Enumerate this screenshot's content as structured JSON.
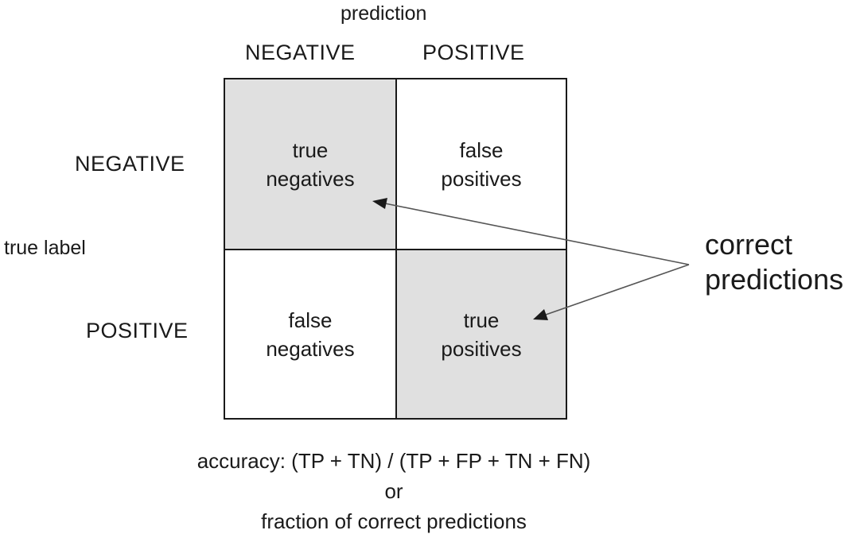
{
  "prediction_axis": {
    "title": "prediction",
    "negative_label": "NEGATIVE",
    "positive_label": "POSITIVE"
  },
  "true_label_axis": {
    "title": "true label",
    "negative_label": "NEGATIVE",
    "positive_label": "POSITIVE"
  },
  "matrix": {
    "true_negatives": {
      "line1": "true",
      "line2": "negatives"
    },
    "false_positives": {
      "line1": "false",
      "line2": "positives"
    },
    "false_negatives": {
      "line1": "false",
      "line2": "negatives"
    },
    "true_positives": {
      "line1": "true",
      "line2": "positives"
    },
    "shaded_color": "#e0e0e0",
    "border_color": "#1a1a1a"
  },
  "callout": {
    "line1": "correct",
    "line2": "predictions",
    "arrow_color": "#555555"
  },
  "footer": {
    "formula": "accuracy: (TP + TN) / (TP + FP + TN + FN)",
    "or": "or",
    "description": "fraction of correct predictions"
  }
}
